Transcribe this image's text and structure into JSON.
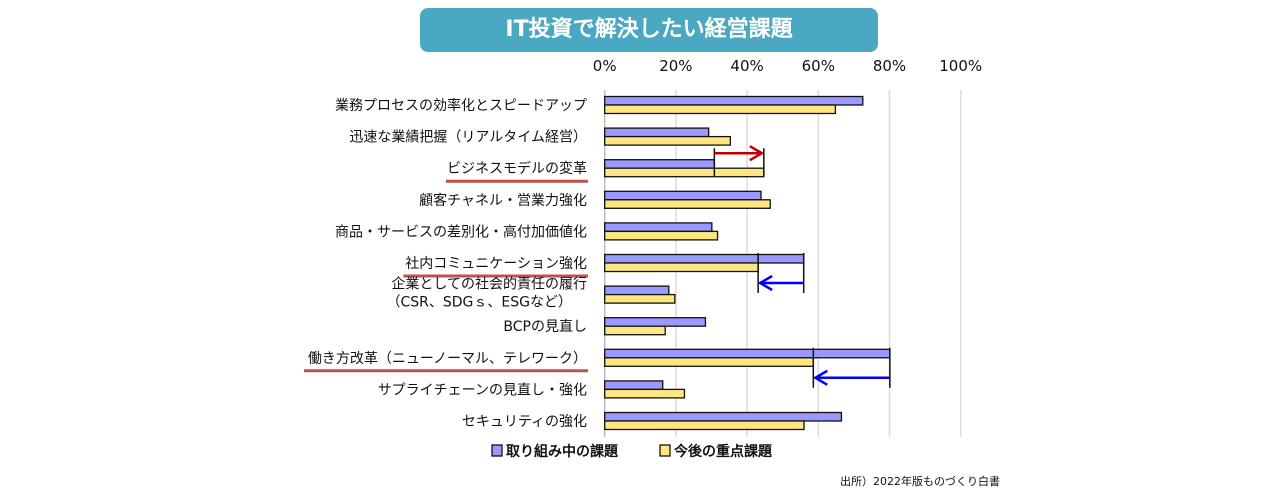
{
  "chart_data": {
    "type": "bar",
    "orientation": "horizontal",
    "title": "IT投資で解決したい経営課題",
    "categories": [
      "業務プロセスの効率化とスピードアップ",
      "迅速な業績把握（リアルタイム経営）",
      "ビジネスモデルの変革",
      "顧客チャネル・営業力強化",
      "商品・サービスの差別化・高付加価値化",
      "社内コミュニケーション強化",
      "企業としての社会的責任の履行（CSR、SDGｓ、ESGなど）",
      "BCPの見直し",
      "働き方改革（ニューノーマル、テレワーク）",
      "サプライチェーンの見直し・強化",
      "セキュリティの強化"
    ],
    "category_lines": [
      [
        "業務プロセスの効率化とスピードアップ"
      ],
      [
        "迅速な業績把握（リアルタイム経営）"
      ],
      [
        "ビジネスモデルの変革"
      ],
      [
        "顧客チャネル・営業力強化"
      ],
      [
        "商品・サービスの差別化・高付加価値化"
      ],
      [
        "社内コミュニケーション強化"
      ],
      [
        "企業としての社会的責任の履行",
        "（CSR、SDGｓ、ESGなど）"
      ],
      [
        "BCPの見直し"
      ],
      [
        "働き方改革（ニューノーマル、テレワーク）"
      ],
      [
        "サプライチェーンの見直し・強化"
      ],
      [
        "セキュリティの強化"
      ]
    ],
    "highlighted": [
      2,
      5,
      8
    ],
    "series": [
      {
        "name": "取り組み中の課題",
        "color": "#9999ff",
        "values": [
          72.5,
          29.2,
          30.8,
          43.9,
          30.1,
          55.9,
          18.0,
          28.3,
          80.1,
          16.3,
          66.5
        ]
      },
      {
        "name": "今後の重点課題",
        "color": "#ffe680",
        "values": [
          64.8,
          35.3,
          44.7,
          46.5,
          31.7,
          43.1,
          19.7,
          17.0,
          58.6,
          22.4,
          56.0
        ]
      }
    ],
    "arrows": [
      {
        "category": 2,
        "direction": "increase",
        "color": "#c00000"
      },
      {
        "category": 5,
        "direction": "decrease",
        "color": "#0000ff"
      },
      {
        "category": 8,
        "direction": "decrease",
        "color": "#0000ff"
      }
    ],
    "xlim": [
      0,
      100
    ],
    "xticks": [
      "0%",
      "20%",
      "40%",
      "60%",
      "80%",
      "100%"
    ],
    "xtick_values": [
      0,
      20,
      40,
      60,
      80,
      100
    ],
    "grid": true,
    "legend_position": "bottom",
    "underline_color": "#c0504d"
  },
  "source": "出所）2022年版ものづくり白書"
}
